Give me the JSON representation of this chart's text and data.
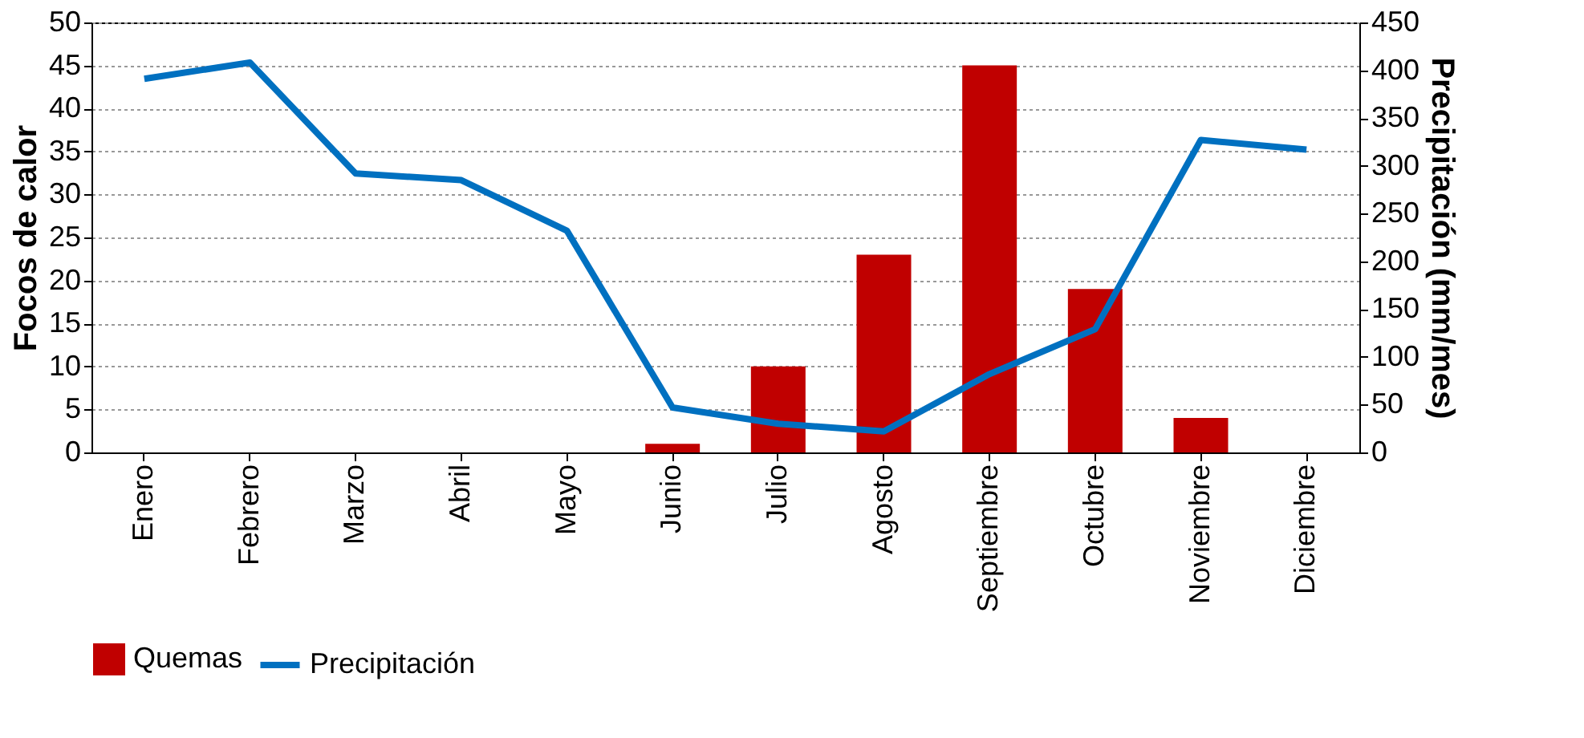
{
  "chart_data": {
    "type": "bar",
    "categories": [
      "Enero",
      "Febrero",
      "Marzo",
      "Abril",
      "Mayo",
      "Junio",
      "Julio",
      "Agosto",
      "Septiembre",
      "Octubre",
      "Noviembre",
      "Diciembre"
    ],
    "series": [
      {
        "name": "Quemas",
        "color": "#c00000",
        "values": [
          0,
          0,
          0,
          0,
          0,
          1,
          10,
          23,
          45,
          19,
          4,
          0
        ]
      },
      {
        "name": "Precipitación",
        "type": "line",
        "axis": "y2",
        "color": "#0070c0",
        "values": [
          391,
          408,
          292,
          285,
          232,
          47,
          30,
          22,
          82,
          129,
          327,
          317
        ]
      }
    ],
    "ylabel": "Focos de calor",
    "y2label": "Precipitación (mm/mes)",
    "ylim": [
      0,
      50
    ],
    "yticks": [
      0,
      5,
      10,
      15,
      20,
      25,
      30,
      35,
      40,
      45,
      50
    ],
    "y2lim": [
      0,
      450
    ],
    "y2ticks": [
      0,
      50,
      100,
      150,
      200,
      250,
      300,
      350,
      400,
      450
    ],
    "grid": "y",
    "legend": "bottom",
    "marker": "none",
    "line_style": "solid"
  }
}
